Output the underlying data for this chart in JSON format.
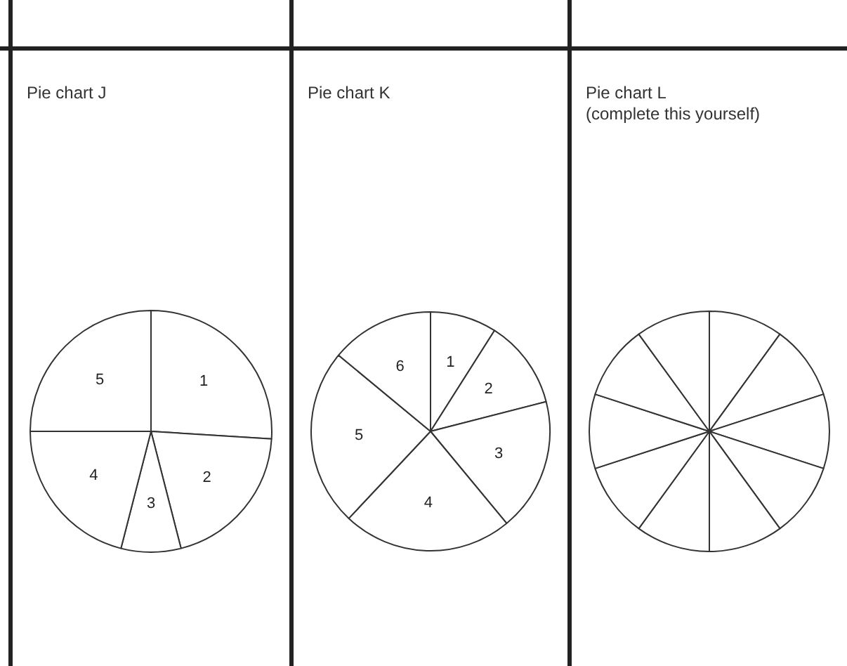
{
  "chart_data": [
    {
      "type": "pie",
      "title": "Pie chart J",
      "categories": [
        "1",
        "2",
        "3",
        "4",
        "5"
      ],
      "values": [
        26,
        20,
        8,
        21,
        25
      ],
      "colors": [
        "#ffffff",
        "#ffffff",
        "#ffffff",
        "#ffffff",
        "#ffffff"
      ]
    },
    {
      "type": "pie",
      "title": "Pie chart K",
      "categories": [
        "1",
        "2",
        "3",
        "4",
        "5",
        "6"
      ],
      "values": [
        9,
        12,
        18,
        23,
        24,
        14
      ],
      "colors": [
        "#ffffff",
        "#ffffff",
        "#ffffff",
        "#ffffff",
        "#ffffff",
        "#ffffff"
      ]
    },
    {
      "type": "pie",
      "title": "Pie chart L",
      "subtitle": "(complete this yourself)",
      "categories": [
        null,
        null,
        null,
        null,
        null,
        null,
        null,
        null,
        null,
        null
      ],
      "values": [
        10,
        10,
        10,
        10,
        10,
        10,
        10,
        10,
        10,
        10
      ],
      "colors": [
        "#ffffff",
        "#ffffff",
        "#ffffff",
        "#ffffff",
        "#ffffff",
        "#ffffff",
        "#ffffff",
        "#ffffff",
        "#ffffff",
        "#ffffff"
      ]
    }
  ]
}
